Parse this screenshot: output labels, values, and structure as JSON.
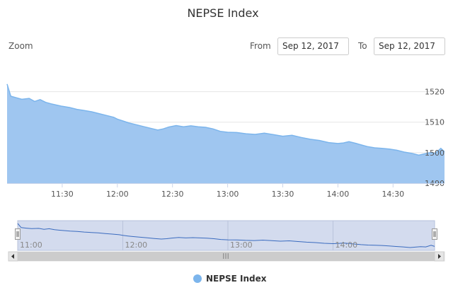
{
  "chart_data": {
    "type": "area",
    "title": "NEPSE Index",
    "series": [
      {
        "name": "NEPSE Index",
        "color": "#7cb5ec",
        "points": [
          [
            "11:00",
            1522.5
          ],
          [
            "11:02",
            1518.5
          ],
          [
            "11:05",
            1518.0
          ],
          [
            "11:08",
            1517.5
          ],
          [
            "11:12",
            1517.8
          ],
          [
            "11:15",
            1516.8
          ],
          [
            "11:18",
            1517.4
          ],
          [
            "11:21",
            1516.5
          ],
          [
            "11:24",
            1516.0
          ],
          [
            "11:27",
            1515.6
          ],
          [
            "11:30",
            1515.2
          ],
          [
            "11:34",
            1514.8
          ],
          [
            "11:38",
            1514.2
          ],
          [
            "11:42",
            1513.8
          ],
          [
            "11:46",
            1513.4
          ],
          [
            "11:50",
            1512.8
          ],
          [
            "11:54",
            1512.2
          ],
          [
            "11:58",
            1511.6
          ],
          [
            "12:00",
            1511.0
          ],
          [
            "12:03",
            1510.4
          ],
          [
            "12:06",
            1509.8
          ],
          [
            "12:10",
            1509.2
          ],
          [
            "12:14",
            1508.6
          ],
          [
            "12:18",
            1508.0
          ],
          [
            "12:22",
            1507.4
          ],
          [
            "12:25",
            1507.8
          ],
          [
            "12:28",
            1508.4
          ],
          [
            "12:32",
            1508.9
          ],
          [
            "12:36",
            1508.5
          ],
          [
            "12:40",
            1508.8
          ],
          [
            "12:44",
            1508.5
          ],
          [
            "12:48",
            1508.3
          ],
          [
            "12:52",
            1507.8
          ],
          [
            "12:56",
            1507.0
          ],
          [
            "13:00",
            1506.7
          ],
          [
            "13:05",
            1506.6
          ],
          [
            "13:10",
            1506.2
          ],
          [
            "13:15",
            1506.0
          ],
          [
            "13:20",
            1506.4
          ],
          [
            "13:25",
            1505.9
          ],
          [
            "13:30",
            1505.4
          ],
          [
            "13:35",
            1505.7
          ],
          [
            "13:40",
            1505.0
          ],
          [
            "13:45",
            1504.4
          ],
          [
            "13:50",
            1504.0
          ],
          [
            "13:55",
            1503.3
          ],
          [
            "14:00",
            1503.0
          ],
          [
            "14:03",
            1503.2
          ],
          [
            "14:06",
            1503.6
          ],
          [
            "14:10",
            1503.0
          ],
          [
            "14:13",
            1502.5
          ],
          [
            "14:16",
            1502.0
          ],
          [
            "14:20",
            1501.6
          ],
          [
            "14:24",
            1501.4
          ],
          [
            "14:28",
            1501.2
          ],
          [
            "14:32",
            1500.8
          ],
          [
            "14:36",
            1500.2
          ],
          [
            "14:40",
            1499.8
          ],
          [
            "14:44",
            1499.2
          ],
          [
            "14:47",
            1499.6
          ],
          [
            "14:50",
            1500.0
          ],
          [
            "14:53",
            1499.8
          ],
          [
            "14:56",
            1501.4
          ],
          [
            "14:58",
            1500.3
          ]
        ]
      }
    ],
    "x_ticks": [
      "11:30",
      "12:00",
      "12:30",
      "13:00",
      "13:30",
      "14:00",
      "14:30"
    ],
    "y_ticks": [
      1490,
      1500,
      1510,
      1520
    ],
    "xlim": [
      "11:00",
      "14:58"
    ],
    "ylim": [
      1490,
      1525
    ],
    "navigator": {
      "x_ticks": [
        "11:00",
        "12:00",
        "13:00",
        "14:00"
      ],
      "scroll_label": "III"
    },
    "legend": "bottom-center",
    "grid": true
  },
  "range_selector": {
    "zoom_label": "Zoom",
    "from_label": "From",
    "from_value": "Sep 12, 2017",
    "to_label": "To",
    "to_value": "Sep 12, 2017"
  }
}
